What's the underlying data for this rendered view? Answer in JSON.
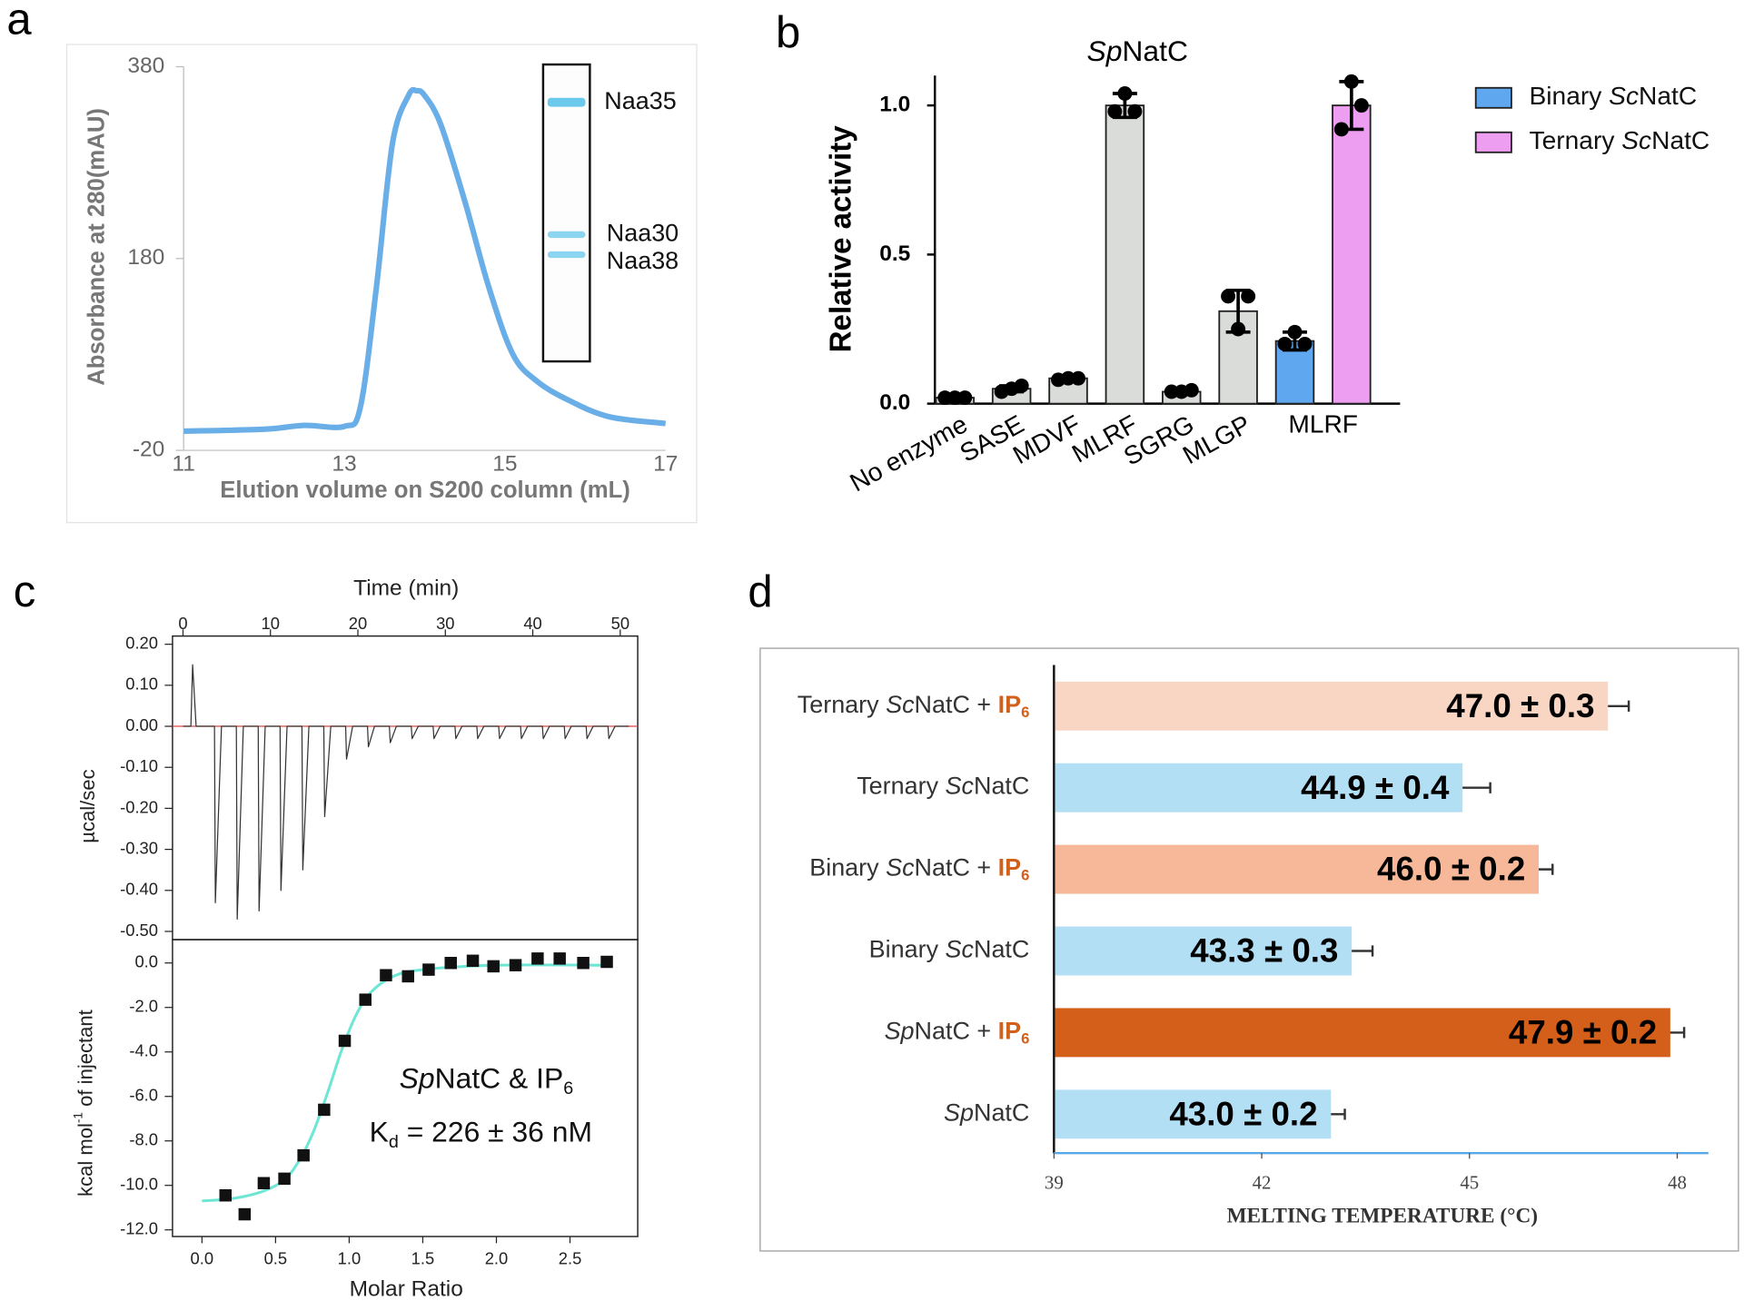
{
  "chart_data": [
    {
      "type": "line",
      "panel": "a",
      "xlabel": "Elution volume on S200 column (mL)",
      "ylabel": "Absorbance at 280(mAU)",
      "x": [
        11,
        12,
        12.5,
        13,
        13.2,
        13.4,
        13.6,
        13.8,
        13.9,
        14,
        14.2,
        14.5,
        14.8,
        15.1,
        15.4,
        15.8,
        16.3,
        17
      ],
      "values": [
        0,
        2,
        6,
        5,
        25,
        150,
        300,
        350,
        355,
        350,
        320,
        240,
        150,
        80,
        52,
        32,
        15,
        8
      ],
      "color": "#6aaee8",
      "xlim": [
        11,
        17
      ],
      "ylim": [
        -20,
        380
      ],
      "xticks": [
        11,
        13,
        15,
        17
      ],
      "yticks": [
        -20,
        180,
        380
      ],
      "annotations": [
        "Naa35",
        "Naa30",
        "Naa38"
      ]
    },
    {
      "type": "bar",
      "panel": "b",
      "title": [
        {
          "text": "Sp",
          "style": "italic"
        },
        {
          "text": "NatC"
        }
      ],
      "ylabel": "Relative activity",
      "categories": [
        "No enzyme",
        "SASE",
        "MDVF",
        "MLRF",
        "SGRG",
        "MLGP",
        "MLRF"
      ],
      "series": [
        {
          "color": "#d9dcd9",
          "values": [
            0.02,
            0.05,
            0.085,
            1,
            0.04,
            0.31,
            null
          ],
          "errors": [
            0.005,
            0.01,
            0.005,
            0.04,
            0.005,
            0.07,
            null
          ],
          "points": [
            [
              0.02,
              0.02,
              0.02
            ],
            [
              0.04,
              0.05,
              0.06
            ],
            [
              0.08,
              0.085,
              0.085
            ],
            [
              0.98,
              1.04,
              0.98
            ],
            [
              0.04,
              0.04,
              0.045
            ],
            [
              0.36,
              0.25,
              0.36
            ],
            null
          ]
        },
        {
          "name": [
            {
              "text": "Binary "
            },
            {
              "text": "Sc",
              "style": "italic"
            },
            {
              "text": "NatC"
            }
          ],
          "color": "#5fa8ef",
          "values": [
            null,
            null,
            null,
            null,
            null,
            null,
            0.21
          ],
          "errors": [
            null,
            null,
            null,
            null,
            null,
            null,
            0.03
          ],
          "points": [
            null,
            null,
            null,
            null,
            null,
            null,
            [
              0.2,
              0.24,
              0.2
            ]
          ]
        },
        {
          "name": [
            {
              "text": "Ternary "
            },
            {
              "text": "Sc",
              "style": "italic"
            },
            {
              "text": "NatC"
            }
          ],
          "color": "#ee9ef0",
          "values": [
            null,
            null,
            null,
            null,
            null,
            null,
            1
          ],
          "errors": [
            null,
            null,
            null,
            null,
            null,
            null,
            0.08
          ],
          "points": [
            null,
            null,
            null,
            null,
            null,
            null,
            [
              0.92,
              1.08,
              1
            ]
          ]
        }
      ],
      "ylim": [
        0,
        1.1
      ],
      "yticks": [
        {
          "value": 0,
          "label": "0.0"
        },
        {
          "value": 0.5,
          "label": "0.5"
        },
        {
          "value": 1,
          "label": "1.0"
        }
      ],
      "legend": "right"
    },
    {
      "type": "line",
      "panel": "c",
      "xaxis": "top",
      "xlabel": "Time (min)",
      "ylabel": "µcal/sec",
      "x": [
        0,
        0.9,
        1.1,
        1.5,
        3.6,
        3.7,
        4.4,
        6.1,
        6.2,
        6.9,
        8.6,
        8.7,
        9.4,
        11.1,
        11.2,
        11.9,
        13.6,
        13.7,
        14.4,
        16.1,
        16.2,
        16.9,
        18.6,
        18.7,
        19.4,
        21.1,
        21.2,
        21.9,
        23.6,
        23.7,
        24.4,
        26.1,
        26.2,
        26.9,
        28.6,
        28.7,
        29.4,
        31.1,
        31.2,
        31.9,
        33.6,
        33.7,
        34.4,
        36.1,
        36.2,
        36.9,
        38.6,
        38.7,
        39.4,
        41.1,
        41.2,
        41.9,
        43.6,
        43.7,
        44.4,
        46.1,
        46.2,
        46.9,
        48.6,
        48.7,
        49.4,
        51
      ],
      "values": [
        0,
        0,
        0.15,
        0,
        0,
        -0.43,
        0,
        0,
        -0.47,
        0,
        0,
        -0.45,
        0,
        0,
        -0.4,
        0,
        0,
        -0.35,
        0,
        0,
        -0.22,
        0,
        0,
        -0.08,
        0,
        0,
        -0.05,
        0,
        0,
        -0.04,
        0,
        0,
        -0.03,
        0,
        0,
        -0.03,
        0,
        0,
        -0.03,
        0,
        0,
        -0.03,
        0,
        0,
        -0.03,
        0,
        0,
        -0.03,
        0,
        0,
        -0.03,
        0,
        0,
        -0.03,
        0,
        0,
        -0.03,
        0,
        0,
        -0.03,
        0,
        0
      ],
      "color": "#333333",
      "baseline": 0,
      "baseline_color": "#e8453c",
      "xlim": [
        -1.2,
        52
      ],
      "ylim": [
        -0.52,
        0.22
      ],
      "xticks": [
        0,
        10,
        20,
        30,
        40,
        50
      ],
      "yticks": [
        {
          "value": 0.2,
          "label": "0.20"
        },
        {
          "value": 0.1,
          "label": "0.10"
        },
        {
          "value": 0,
          "label": "0.00"
        },
        {
          "value": -0.1,
          "label": "-0.10"
        },
        {
          "value": -0.2,
          "label": "-0.20"
        },
        {
          "value": -0.3,
          "label": "-0.30"
        },
        {
          "value": -0.4,
          "label": "-0.40"
        },
        {
          "value": -0.5,
          "label": "-0.50"
        }
      ]
    },
    {
      "type": "scatter",
      "xlabel": "Molar Ratio",
      "ylabel": [
        {
          "text": "kcal mol"
        },
        {
          "text": "-1",
          "style": "sup"
        },
        {
          "text": " of injectant"
        }
      ],
      "x": [
        0.16,
        0.29,
        0.42,
        0.56,
        0.69,
        0.83,
        0.97,
        1.11,
        1.25,
        1.4,
        1.54,
        1.69,
        1.84,
        1.98,
        2.13,
        2.28,
        2.43,
        2.59,
        2.75
      ],
      "values": [
        -10.45,
        -11.3,
        -9.9,
        -9.7,
        -8.65,
        -6.6,
        -3.5,
        -1.65,
        -0.55,
        -0.6,
        -0.3,
        0,
        0.1,
        -0.15,
        -0.1,
        0.2,
        0.2,
        0,
        0.05
      ],
      "color": "#111111",
      "fit": {
        "color": "#6ee6d4",
        "x": [
          0,
          0.2,
          0.4,
          0.55,
          0.65,
          0.75,
          0.85,
          0.95,
          1.05,
          1.15,
          1.3,
          1.5,
          2,
          2.75
        ],
        "values": [
          -10.7,
          -10.6,
          -10.3,
          -9.8,
          -9,
          -7.7,
          -5.9,
          -3.9,
          -2.3,
          -1.3,
          -0.6,
          -0.3,
          -0.1,
          -0.1
        ]
      },
      "xlim": [
        -0.2,
        2.96
      ],
      "ylim": [
        -12.3,
        1.05
      ],
      "xticks": [
        {
          "value": 0,
          "label": "0.0"
        },
        {
          "value": 0.5,
          "label": "0.5"
        },
        {
          "value": 1,
          "label": "1.0"
        },
        {
          "value": 1.5,
          "label": "1.5"
        },
        {
          "value": 2,
          "label": "2.0"
        },
        {
          "value": 2.5,
          "label": "2.5"
        }
      ],
      "yticks": [
        {
          "value": 0,
          "label": "0.0"
        },
        {
          "value": -2,
          "label": "-2.0"
        },
        {
          "value": -4,
          "label": "-4.0"
        },
        {
          "value": -6,
          "label": "-6.0"
        },
        {
          "value": -8,
          "label": "-8.0"
        },
        {
          "value": -10,
          "label": "-10.0"
        },
        {
          "value": -12,
          "label": "-12.0"
        }
      ],
      "annotations": [
        [
          {
            "text": "Sp",
            "style": "italic"
          },
          {
            "text": "NatC & IP"
          },
          {
            "text": "6",
            "style": "sub"
          }
        ],
        [
          {
            "text": "K"
          },
          {
            "text": "d",
            "style": "sub"
          },
          {
            "text": " = 226 ± 36 nM"
          }
        ]
      ]
    },
    {
      "type": "barh",
      "panel": "d",
      "xlabel": "MELTING TEMPERATURE (°C)",
      "categories": [
        [
          {
            "text": "Ternary "
          },
          {
            "text": "Sc",
            "style": "italic"
          },
          {
            "text": "NatC + "
          },
          {
            "text": "IP",
            "style": "highlight"
          },
          {
            "text": "6",
            "style": "highlight-sub"
          }
        ],
        [
          {
            "text": "Ternary "
          },
          {
            "text": "Sc",
            "style": "italic"
          },
          {
            "text": "NatC"
          }
        ],
        [
          {
            "text": "Binary "
          },
          {
            "text": "Sc",
            "style": "italic"
          },
          {
            "text": "NatC + "
          },
          {
            "text": "IP",
            "style": "highlight"
          },
          {
            "text": "6",
            "style": "highlight-sub"
          }
        ],
        [
          {
            "text": "Binary "
          },
          {
            "text": "Sc",
            "style": "italic"
          },
          {
            "text": "NatC"
          }
        ],
        [
          {
            "text": "Sp",
            "style": "italic"
          },
          {
            "text": "NatC + "
          },
          {
            "text": "IP",
            "style": "highlight"
          },
          {
            "text": "6",
            "style": "highlight-sub"
          }
        ],
        [
          {
            "text": "Sp",
            "style": "italic"
          },
          {
            "text": "NatC"
          }
        ]
      ],
      "values": [
        47.0,
        44.9,
        46.0,
        43.3,
        47.9,
        43.0
      ],
      "errors": [
        0.3,
        0.4,
        0.2,
        0.3,
        0.2,
        0.2
      ],
      "value_labels": [
        "47.0 ± 0.3",
        "44.9 ± 0.4",
        "46.0 ± 0.2",
        "43.3 ± 0.3",
        "47.9 ± 0.2",
        "43.0 ± 0.2"
      ],
      "colors": [
        "#f9d5c4",
        "#b3dff5",
        "#f6b899",
        "#b3dff5",
        "#d45f1a",
        "#b3dff5"
      ],
      "xlim": [
        39,
        48.45
      ],
      "xticks": [
        39,
        42,
        45,
        48
      ]
    }
  ]
}
